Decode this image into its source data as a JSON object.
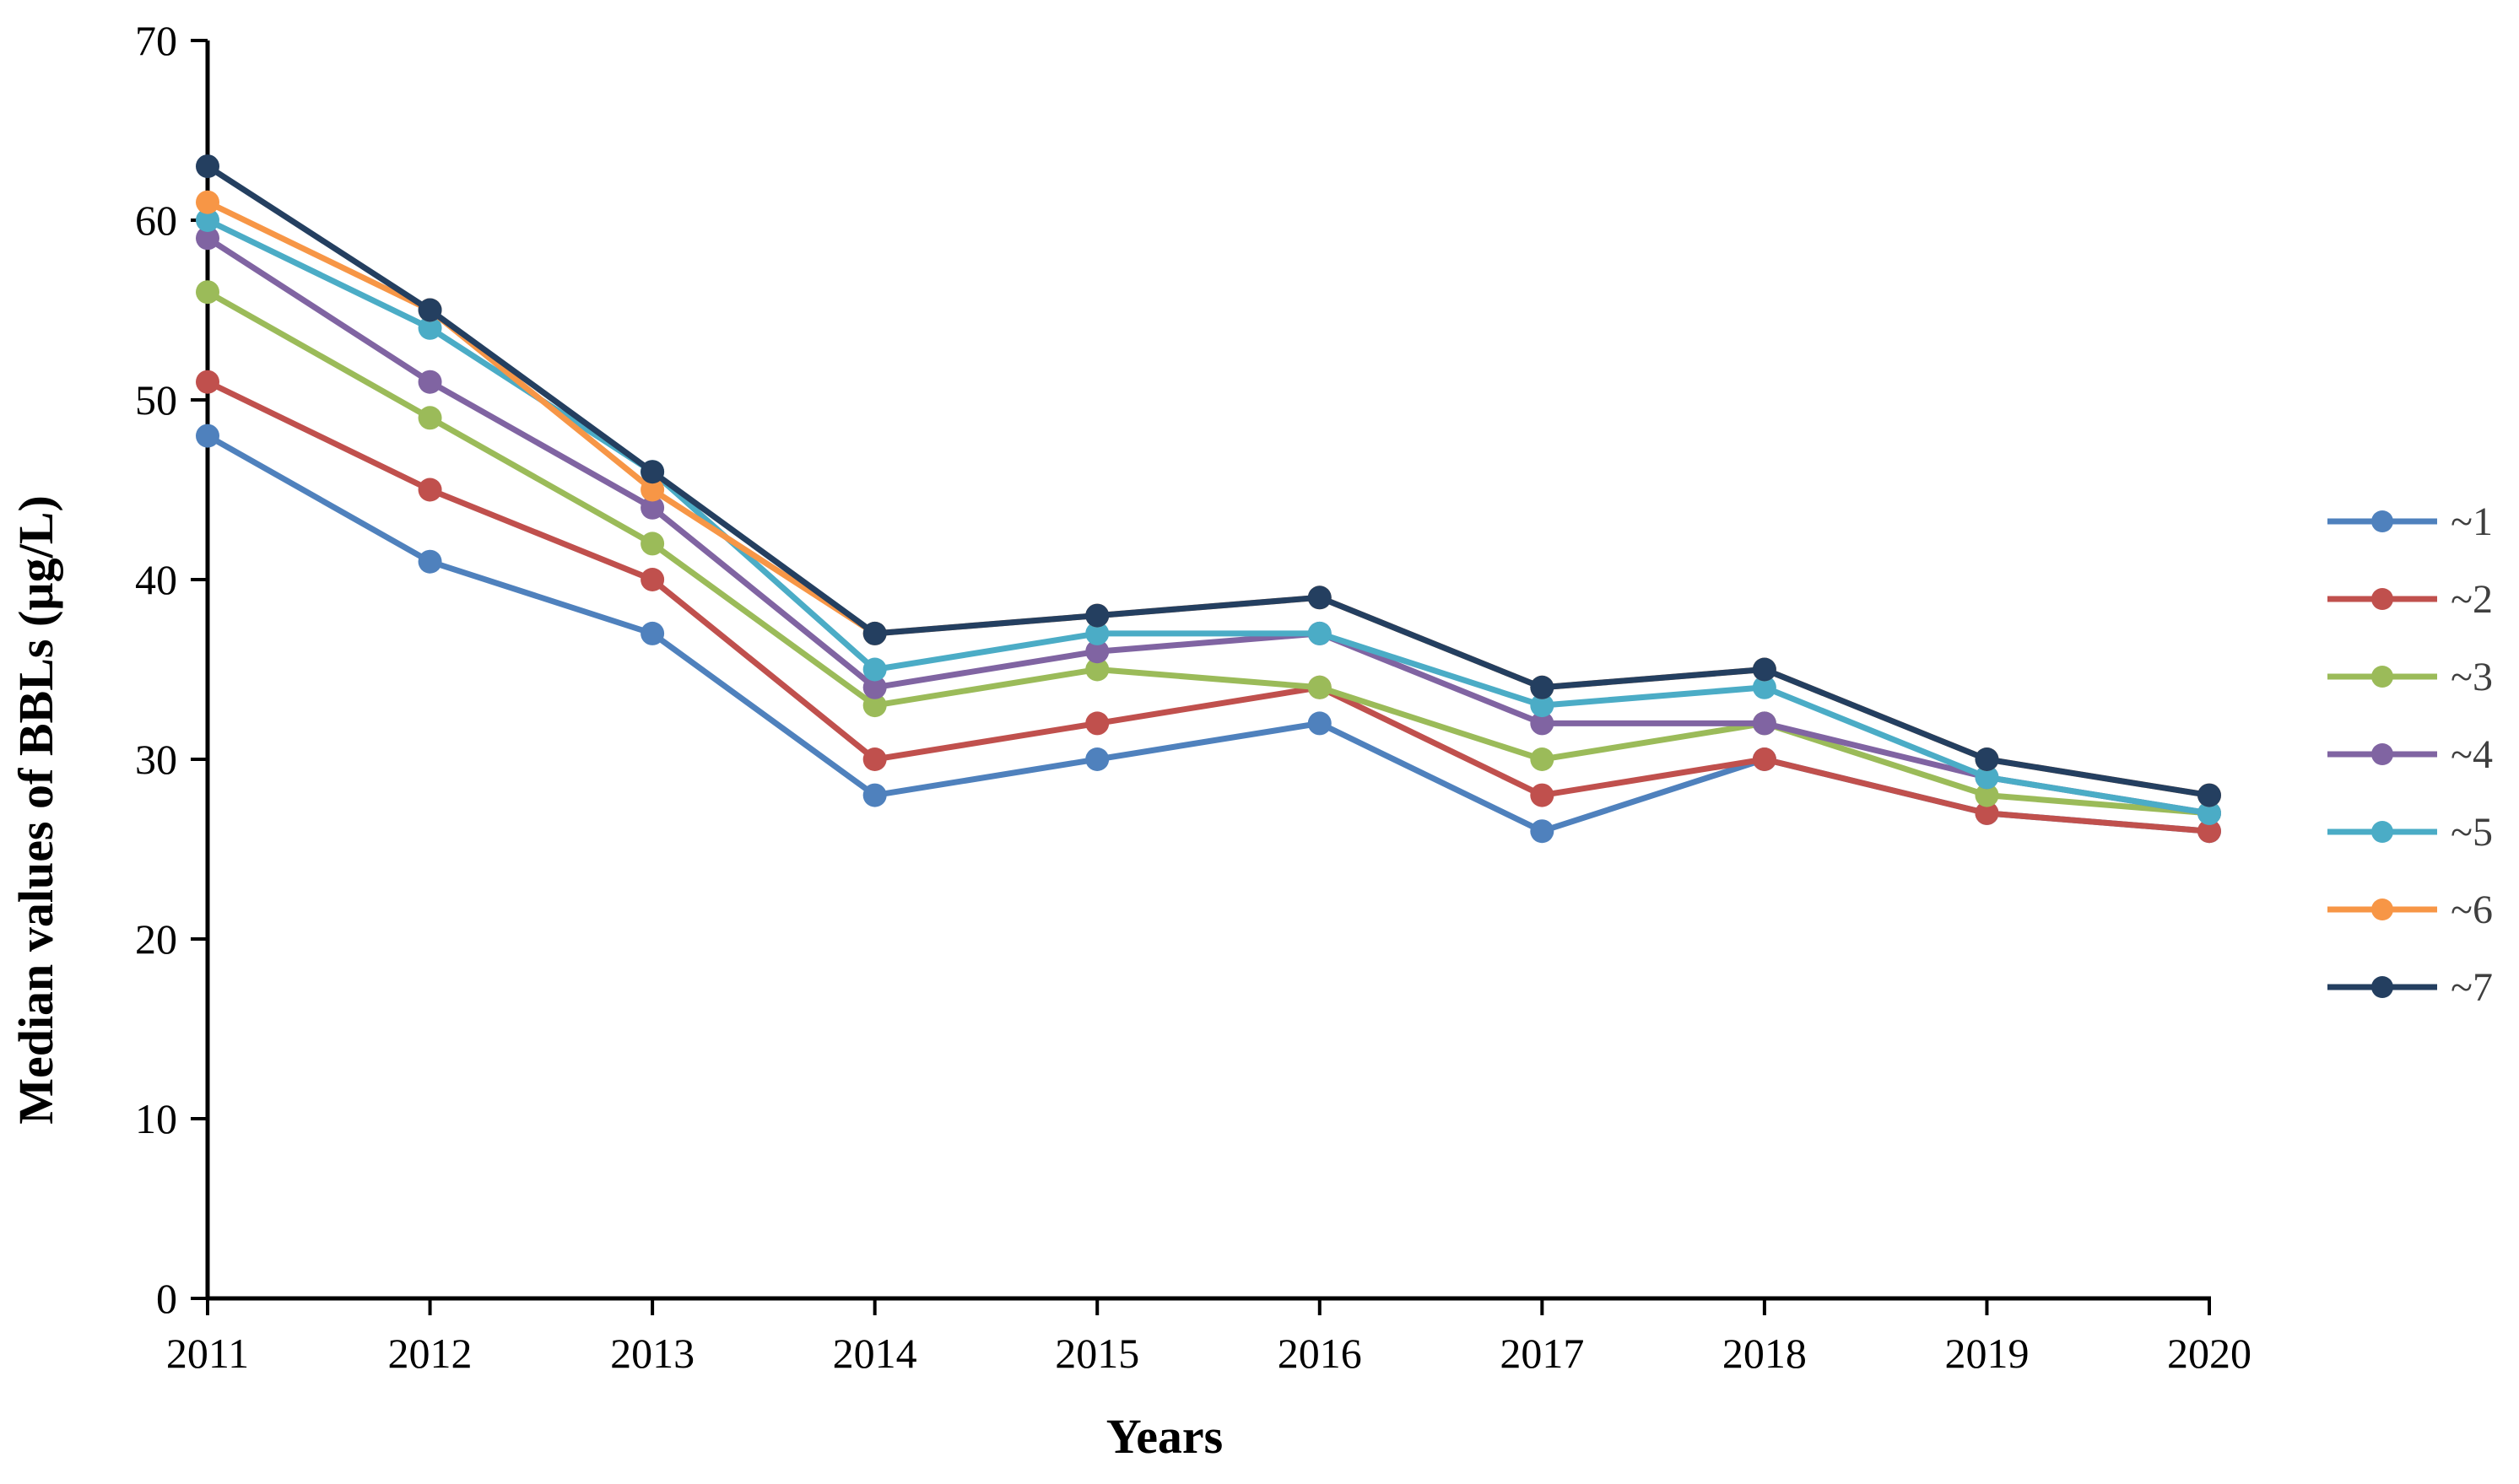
{
  "chart_data": {
    "type": "line",
    "title": "",
    "xlabel": "Years",
    "ylabel": "Median values of BBLs (µg/L)",
    "ylim": [
      0,
      70
    ],
    "ytick_step": 10,
    "ytick_labels": [
      "0",
      "10",
      "20",
      "30",
      "40",
      "50",
      "60",
      "70"
    ],
    "grid": false,
    "legend_position": "right",
    "categories": [
      "2011",
      "2012",
      "2013",
      "2014",
      "2015",
      "2016",
      "2017",
      "2018",
      "2019",
      "2020"
    ],
    "series": [
      {
        "name": "~1",
        "color": "#4F81BD",
        "values": [
          48,
          41,
          37,
          28,
          30,
          32,
          26,
          30,
          27,
          26
        ]
      },
      {
        "name": "~2",
        "color": "#C0504D",
        "values": [
          51,
          45,
          40,
          30,
          32,
          34,
          28,
          30,
          27,
          26
        ]
      },
      {
        "name": "~3",
        "color": "#9BBB59",
        "values": [
          56,
          49,
          42,
          33,
          35,
          34,
          30,
          32,
          28,
          27
        ]
      },
      {
        "name": "~4",
        "color": "#8064A2",
        "values": [
          59,
          51,
          44,
          34,
          36,
          37,
          32,
          32,
          29,
          27
        ]
      },
      {
        "name": "~5",
        "color": "#4BACC6",
        "values": [
          60,
          54,
          46,
          35,
          37,
          37,
          33,
          34,
          29,
          27
        ]
      },
      {
        "name": "~6",
        "color": "#F79646",
        "values": [
          61,
          55,
          45,
          37,
          38,
          39,
          34,
          35,
          30,
          28
        ]
      },
      {
        "name": "~7",
        "color": "#243F60",
        "values": [
          63,
          55,
          46,
          37,
          38,
          39,
          34,
          35,
          30,
          28
        ]
      }
    ],
    "style": {
      "line_width": 7,
      "marker_radius": 14,
      "axis_color": "#000000",
      "background": "#ffffff"
    }
  }
}
